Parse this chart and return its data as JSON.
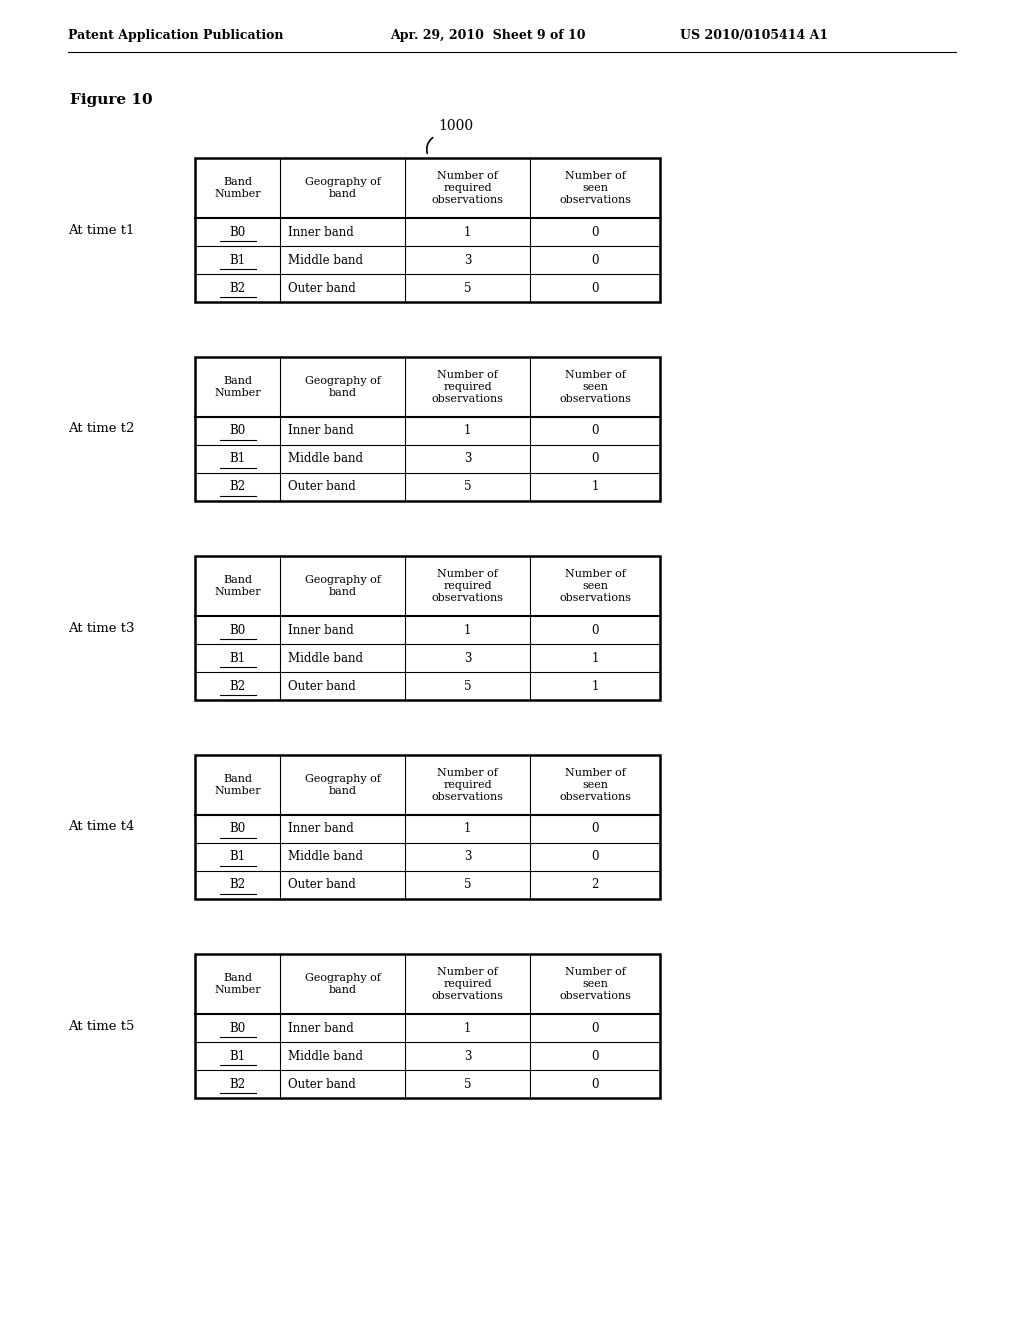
{
  "header_left": "Patent Application Publication",
  "header_mid": "Apr. 29, 2010  Sheet 9 of 10",
  "header_right": "US 2010/0105414 A1",
  "figure_label": "Figure 10",
  "figure_number": "1000",
  "background_color": "#ffffff",
  "tables": [
    {
      "time_label": "At time t1",
      "seen_observations": [
        "0",
        "0",
        "0"
      ]
    },
    {
      "time_label": "At time t2",
      "seen_observations": [
        "0",
        "0",
        "1"
      ]
    },
    {
      "time_label": "At time t3",
      "seen_observations": [
        "0",
        "1",
        "1"
      ]
    },
    {
      "time_label": "At time t4",
      "seen_observations": [
        "0",
        "0",
        "2"
      ]
    },
    {
      "time_label": "At time t5",
      "seen_observations": [
        "0",
        "0",
        "0"
      ]
    }
  ],
  "col_headers": [
    "Band\nNumber",
    "Geography of\nband",
    "Number of\nrequired\nobservations",
    "Number of\nseen\nobservations"
  ],
  "bands": [
    "B0",
    "B1",
    "B2"
  ],
  "geographies": [
    "Inner band",
    "Middle band",
    "Outer band"
  ],
  "required_obs": [
    "1",
    "3",
    "5"
  ]
}
